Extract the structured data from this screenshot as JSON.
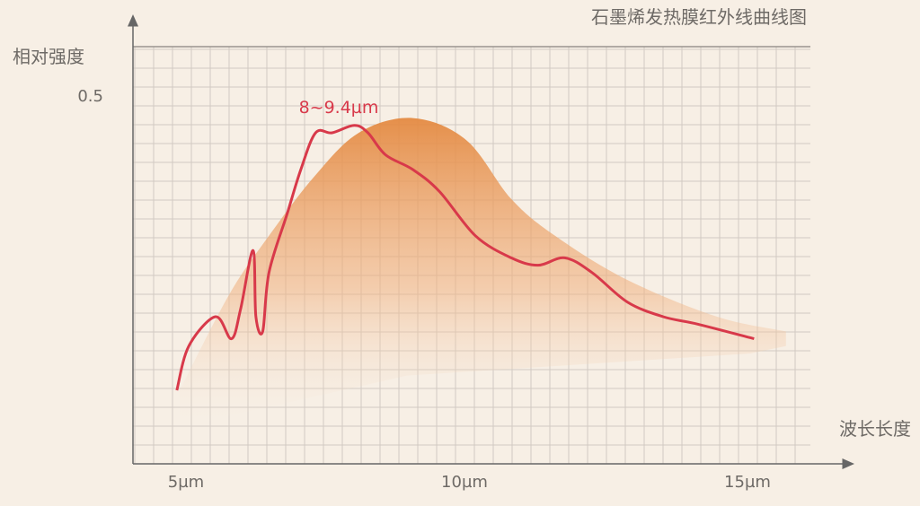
{
  "chart_data": {
    "type": "line",
    "title": "石墨烯发热膜红外线曲线图",
    "xlabel": "波长长度",
    "ylabel": "相对强度",
    "x_ticks": [
      "5µm",
      "10µm",
      "15µm"
    ],
    "y_ticks": [
      "0.5"
    ],
    "xlim": [
      4.2,
      16.1
    ],
    "ylim": [
      0,
      0.5
    ],
    "grid": true,
    "annotation": "8~9.4µm",
    "colors": {
      "line": "#d8394a",
      "area": "#e8904a",
      "background": "#f7efe5"
    },
    "series": [
      {
        "type": "line",
        "x": [
          4.95,
          5.16,
          5.63,
          5.91,
          6.07,
          6.29,
          6.34,
          6.46,
          6.57,
          6.89,
          7.13,
          7.39,
          7.68,
          8.07,
          8.31,
          8.62,
          9.1,
          9.57,
          10.2,
          10.83,
          11.3,
          11.77,
          12.25,
          12.87,
          13.5,
          14.1,
          15.1
        ],
        "y": [
          0.1,
          0.16,
          0.2,
          0.17,
          0.21,
          0.29,
          0.2,
          0.18,
          0.26,
          0.34,
          0.4,
          0.45,
          0.45,
          0.46,
          0.45,
          0.42,
          0.4,
          0.37,
          0.31,
          0.28,
          0.27,
          0.28,
          0.26,
          0.22,
          0.2,
          0.19,
          0.17
        ]
      },
      {
        "type": "area",
        "x": [
          5.0,
          5.87,
          6.57,
          7.36,
          8.15,
          9.1,
          10.04,
          10.83,
          11.6,
          12.87,
          14.45,
          15.66
        ],
        "y": [
          0.1,
          0.23,
          0.31,
          0.39,
          0.45,
          0.47,
          0.44,
          0.36,
          0.31,
          0.25,
          0.2,
          0.18
        ]
      }
    ]
  }
}
